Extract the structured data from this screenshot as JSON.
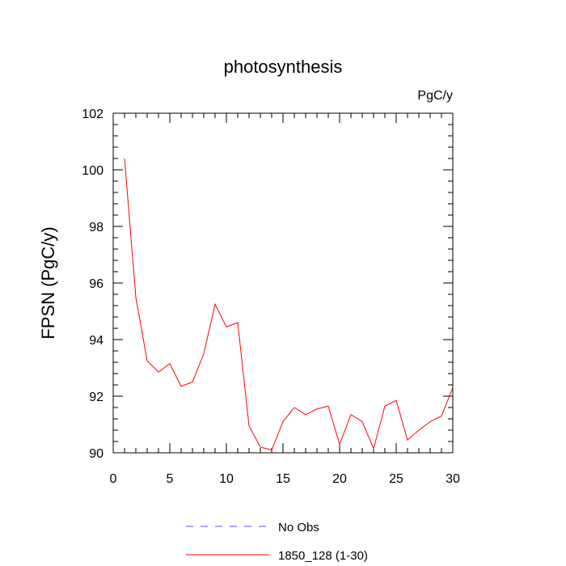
{
  "chart_data": {
    "type": "line",
    "title": "photosynthesis",
    "units": "PgC/y",
    "ylabel": "FPSN  (PgC/y)",
    "xlabel": "",
    "xlim": [
      0,
      30
    ],
    "ylim": [
      90,
      102
    ],
    "xticks": [
      0,
      5,
      10,
      15,
      20,
      25,
      30
    ],
    "yticks": [
      90,
      92,
      94,
      96,
      98,
      100,
      102
    ],
    "x_minor_step": 1,
    "y_minor_step": 0.4,
    "grid": false,
    "legend_placement": "bottom",
    "series": [
      {
        "name": "No Obs",
        "color": "#4d4dff",
        "style": "dashed",
        "x": [],
        "values": []
      },
      {
        "name": "1850_128 (1-30)",
        "color": "#ff0000",
        "style": "solid",
        "x": [
          1,
          2,
          3,
          4,
          5,
          6,
          7,
          8,
          9,
          10,
          11,
          12,
          13,
          14,
          15,
          16,
          17,
          18,
          19,
          20,
          21,
          22,
          23,
          24,
          25,
          26,
          27,
          28,
          29,
          30
        ],
        "values": [
          100.4,
          95.5,
          93.25,
          92.85,
          93.15,
          92.35,
          92.5,
          93.5,
          95.25,
          94.45,
          94.6,
          90.95,
          90.2,
          90.1,
          91.1,
          91.6,
          91.35,
          91.55,
          91.65,
          90.3,
          91.35,
          91.1,
          90.15,
          91.65,
          91.85,
          90.45,
          90.8,
          91.1,
          91.3,
          92.3
        ]
      }
    ]
  }
}
